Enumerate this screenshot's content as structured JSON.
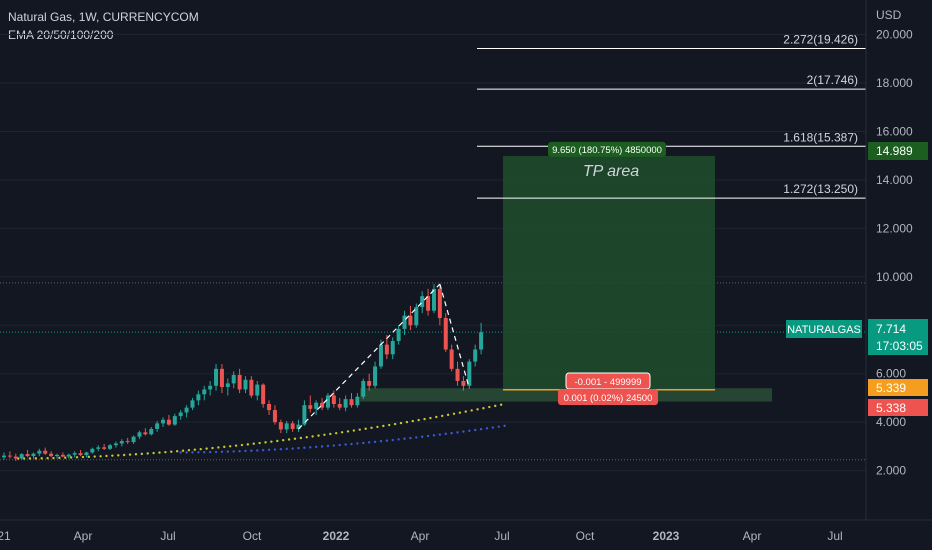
{
  "header": {
    "symbol_line": "Natural Gas, 1W, CURRENCYCOM",
    "indicator_line": "EMA 20/50/100/200"
  },
  "colors": {
    "background": "#131722",
    "up": "#26a69a",
    "down": "#ef5350",
    "target_zone": "#1e4d2b",
    "support_zone": "#2a4a35",
    "fib_line": "#ffffff",
    "ema_yellow": "#c8c830",
    "ema_blue": "#3a5ad8",
    "price_label": "#089981",
    "tp_label": "#1b5e20"
  },
  "chart_data": {
    "type": "candlestick",
    "currency": "USD",
    "y_range": [
      1.2,
      20.6
    ],
    "y_ticks": [
      "2.000",
      "4.000",
      "6.000",
      "8.000",
      "10.000",
      "12.000",
      "14.000",
      "16.000",
      "18.000",
      "20.000"
    ],
    "x_ticks": [
      "21",
      "Apr",
      "Jul",
      "Oct",
      "2022",
      "Apr",
      "Jul",
      "Oct",
      "2023",
      "Apr",
      "Jul"
    ],
    "candles": [
      [
        2.55,
        2.75,
        2.45,
        2.62
      ],
      [
        2.62,
        2.8,
        2.5,
        2.58
      ],
      [
        2.58,
        2.7,
        2.4,
        2.5
      ],
      [
        2.5,
        2.72,
        2.45,
        2.68
      ],
      [
        2.68,
        2.85,
        2.55,
        2.6
      ],
      [
        2.6,
        2.75,
        2.5,
        2.7
      ],
      [
        2.7,
        2.9,
        2.6,
        2.82
      ],
      [
        2.82,
        2.95,
        2.65,
        2.7
      ],
      [
        2.7,
        2.8,
        2.55,
        2.6
      ],
      [
        2.6,
        2.7,
        2.5,
        2.65
      ],
      [
        2.65,
        2.75,
        2.55,
        2.58
      ],
      [
        2.58,
        2.7,
        2.5,
        2.66
      ],
      [
        2.66,
        2.8,
        2.55,
        2.72
      ],
      [
        2.72,
        2.85,
        2.6,
        2.64
      ],
      [
        2.64,
        2.78,
        2.55,
        2.75
      ],
      [
        2.75,
        2.95,
        2.7,
        2.9
      ],
      [
        2.9,
        3.05,
        2.8,
        2.96
      ],
      [
        2.96,
        3.1,
        2.85,
        2.9
      ],
      [
        2.9,
        3.1,
        2.85,
        3.05
      ],
      [
        3.05,
        3.2,
        2.95,
        3.12
      ],
      [
        3.12,
        3.3,
        3.0,
        3.22
      ],
      [
        3.22,
        3.35,
        3.1,
        3.18
      ],
      [
        3.18,
        3.45,
        3.1,
        3.4
      ],
      [
        3.4,
        3.65,
        3.3,
        3.58
      ],
      [
        3.58,
        3.75,
        3.45,
        3.5
      ],
      [
        3.5,
        3.8,
        3.45,
        3.72
      ],
      [
        3.72,
        4.05,
        3.6,
        3.95
      ],
      [
        3.95,
        4.2,
        3.8,
        4.1
      ],
      [
        4.1,
        4.3,
        3.85,
        3.9
      ],
      [
        3.9,
        4.35,
        3.85,
        4.25
      ],
      [
        4.25,
        4.5,
        4.1,
        4.4
      ],
      [
        4.4,
        4.7,
        4.2,
        4.6
      ],
      [
        4.6,
        5.0,
        4.5,
        4.9
      ],
      [
        4.9,
        5.3,
        4.7,
        5.15
      ],
      [
        5.15,
        5.5,
        4.9,
        5.35
      ],
      [
        5.35,
        5.7,
        5.1,
        5.5
      ],
      [
        5.5,
        6.4,
        5.3,
        6.2
      ],
      [
        6.2,
        6.4,
        5.2,
        5.45
      ],
      [
        5.45,
        5.8,
        5.1,
        5.6
      ],
      [
        5.6,
        6.1,
        5.4,
        5.95
      ],
      [
        5.95,
        6.2,
        5.2,
        5.35
      ],
      [
        5.35,
        5.9,
        5.2,
        5.75
      ],
      [
        5.75,
        5.9,
        5.0,
        5.1
      ],
      [
        5.1,
        5.7,
        4.9,
        5.55
      ],
      [
        5.55,
        5.6,
        4.6,
        4.75
      ],
      [
        4.75,
        4.9,
        4.3,
        4.5
      ],
      [
        4.5,
        4.7,
        3.9,
        4.0
      ],
      [
        4.0,
        4.1,
        3.55,
        3.7
      ],
      [
        3.7,
        4.05,
        3.55,
        3.95
      ],
      [
        3.95,
        4.05,
        3.6,
        3.72
      ],
      [
        3.72,
        4.1,
        3.6,
        3.9
      ],
      [
        3.9,
        4.9,
        3.85,
        4.7
      ],
      [
        4.7,
        5.1,
        4.4,
        4.55
      ],
      [
        4.55,
        4.9,
        4.3,
        4.8
      ],
      [
        4.8,
        5.0,
        4.5,
        4.6
      ],
      [
        4.6,
        5.2,
        4.5,
        5.1
      ],
      [
        5.1,
        5.3,
        4.6,
        4.75
      ],
      [
        4.75,
        5.0,
        4.5,
        4.6
      ],
      [
        4.6,
        5.1,
        4.45,
        4.95
      ],
      [
        4.95,
        5.2,
        4.6,
        4.7
      ],
      [
        4.7,
        5.2,
        4.6,
        5.05
      ],
      [
        5.05,
        5.8,
        4.95,
        5.7
      ],
      [
        5.7,
        6.0,
        5.3,
        5.5
      ],
      [
        5.5,
        6.5,
        5.4,
        6.3
      ],
      [
        6.3,
        7.4,
        6.2,
        7.2
      ],
      [
        7.2,
        7.6,
        6.6,
        6.8
      ],
      [
        6.8,
        7.5,
        6.6,
        7.35
      ],
      [
        7.35,
        8.0,
        7.2,
        7.85
      ],
      [
        7.85,
        8.6,
        7.6,
        8.4
      ],
      [
        8.4,
        8.8,
        7.8,
        8.0
      ],
      [
        8.0,
        8.9,
        7.9,
        8.75
      ],
      [
        8.75,
        9.4,
        8.5,
        9.2
      ],
      [
        9.2,
        9.5,
        8.4,
        8.6
      ],
      [
        8.6,
        9.7,
        8.5,
        9.5
      ],
      [
        9.5,
        9.7,
        8.0,
        8.3
      ],
      [
        8.3,
        8.5,
        6.9,
        7.0
      ],
      [
        7.0,
        7.2,
        6.1,
        6.2
      ],
      [
        6.2,
        6.5,
        5.5,
        5.7
      ],
      [
        5.7,
        5.9,
        5.3,
        5.5
      ],
      [
        5.5,
        6.6,
        5.4,
        6.5
      ],
      [
        6.5,
        7.2,
        6.3,
        7.0
      ],
      [
        7.0,
        8.1,
        6.8,
        7.71
      ]
    ],
    "ema_series": [
      {
        "color": "#c8c830",
        "from": [
          2.4,
          2.5
        ],
        "to": [
          85,
          4.75
        ]
      },
      {
        "color": "#3a5ad8",
        "from": [
          30,
          2.75
        ],
        "to": [
          85,
          3.85
        ]
      }
    ],
    "fib_levels": [
      {
        "label": "1.272(13.250)",
        "value": 13.25
      },
      {
        "label": "1.618(15.387)",
        "value": 15.387
      },
      {
        "label": "2(17.746)",
        "value": 17.746
      },
      {
        "label": "2.272(19.426)",
        "value": 19.426
      }
    ],
    "previous_high": 9.75,
    "current_price": 7.714,
    "target_zone": {
      "top": 14.989,
      "bottom": 5.339,
      "label": "TP area",
      "badge": "9.650 (180.75%) 4850000"
    },
    "stop_badges": [
      "-0.001 - 499999",
      "0.001 (0.02%) 24500"
    ],
    "price_labels": {
      "symbol": "NATURALGAS",
      "last": "7.714",
      "countdown": "17:03:05",
      "target": "14.989",
      "entry": "5.339",
      "stop": "5.338"
    }
  }
}
